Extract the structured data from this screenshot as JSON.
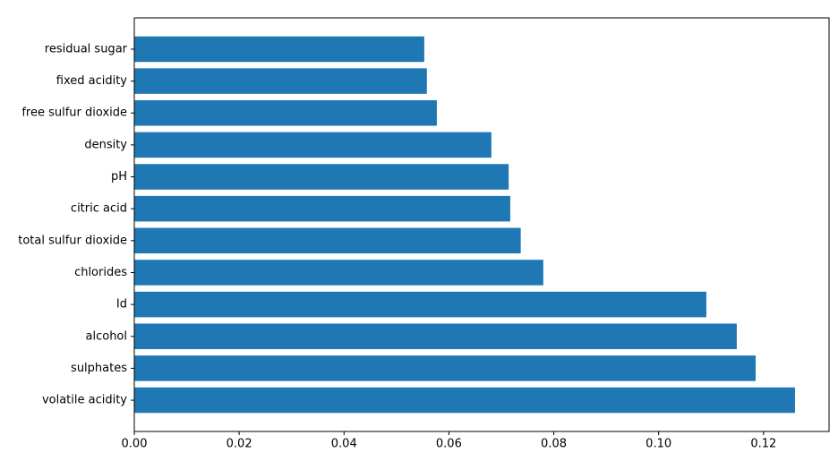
{
  "chart_data": {
    "type": "barh",
    "categories": [
      "volatile acidity",
      "sulphates",
      "alcohol",
      "Id",
      "chlorides",
      "total sulfur dioxide",
      "citric acid",
      "pH",
      "density",
      "free sulfur dioxide",
      "fixed acidity",
      "residual sugar"
    ],
    "values": [
      0.126,
      0.1185,
      0.1149,
      0.1091,
      0.078,
      0.0737,
      0.0717,
      0.0714,
      0.0681,
      0.0577,
      0.0558,
      0.0553
    ],
    "color": "#1f77b4",
    "xlim": [
      0,
      0.1325
    ],
    "xticks": [
      {
        "value": 0,
        "label": "0.00"
      },
      0.02,
      0.04,
      0.06,
      0.08,
      {
        "value": 0.1,
        "label": "0.10"
      },
      0.12
    ],
    "grid": false
  }
}
